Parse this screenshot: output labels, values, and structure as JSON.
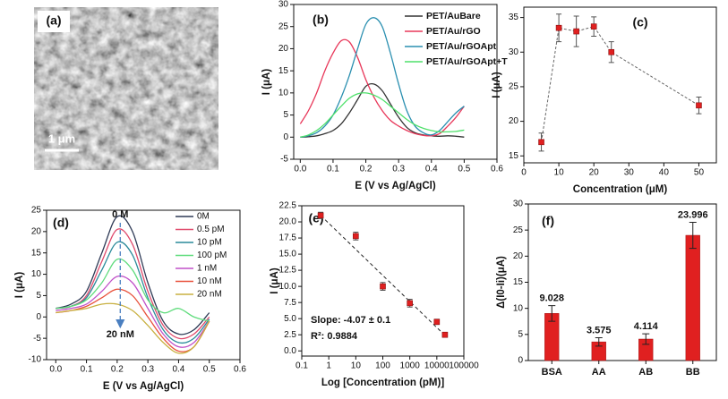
{
  "chart_data": [
    {
      "type": "image",
      "label": "(a)",
      "scale_bar": "1 μm"
    },
    {
      "type": "line",
      "label": "(b)",
      "xlabel": "E (V vs Ag/AgCl)",
      "ylabel": "I (μA)",
      "x": [
        0,
        0.025,
        0.05,
        0.075,
        0.1,
        0.125,
        0.15,
        0.175,
        0.2,
        0.225,
        0.25,
        0.275,
        0.3,
        0.325,
        0.35,
        0.375,
        0.4,
        0.425,
        0.45,
        0.475,
        0.5
      ],
      "xlim": [
        -0.02,
        0.6
      ],
      "xticks": [
        {
          "value": 0,
          "label": "0.0"
        },
        0.1,
        0.2,
        0.3,
        0.4,
        0.5,
        0.6
      ],
      "ylim": [
        -5,
        30
      ],
      "yticks": [
        -5,
        0,
        5,
        10,
        15,
        20,
        25,
        30
      ],
      "legend": "upper right",
      "series": [
        {
          "name": "PET/AuBare",
          "color": "#333333",
          "values": [
            0,
            0.1,
            0.3,
            0.8,
            1.5,
            3,
            5.5,
            8.5,
            11.5,
            12,
            10.5,
            7.5,
            4.5,
            2.2,
            1,
            0.5,
            0.3,
            0.2,
            0.3,
            0.2,
            0
          ]
        },
        {
          "name": "PET/Au/rGO",
          "color": "#e8385a",
          "values": [
            3,
            6,
            10,
            15,
            19,
            21.8,
            21.5,
            18,
            13,
            9,
            6,
            3.8,
            2.5,
            1.5,
            0.8,
            0.4,
            0.3,
            0.8,
            2.5,
            4.5,
            7
          ]
        },
        {
          "name": "PET/Au/rGOApt",
          "color": "#2a8fb0",
          "values": [
            0,
            0.3,
            1,
            2.5,
            5,
            9,
            14,
            20,
            25.5,
            27,
            25,
            19,
            12,
            6,
            2.5,
            1,
            0.5,
            1.5,
            3.5,
            5.5,
            7
          ]
        },
        {
          "name": "PET/Au/rGOApt+T",
          "color": "#4ee06a",
          "values": [
            0,
            0.5,
            1.5,
            3,
            5,
            7,
            8.8,
            9.8,
            10,
            9.5,
            8.5,
            7,
            5.5,
            4,
            2.8,
            2,
            1.5,
            1.2,
            1.2,
            1.3,
            1.6
          ]
        }
      ]
    },
    {
      "type": "scatter",
      "label": "(c)",
      "xlabel": "Concentration (μM)",
      "ylabel": "I (μA)",
      "x": [
        5,
        10,
        15,
        20,
        25,
        50
      ],
      "values": [
        17,
        33.5,
        33,
        33.7,
        30,
        22.3
      ],
      "errors": [
        1.3,
        2,
        2.2,
        1.4,
        1.5,
        1.2
      ],
      "color": "#e02020",
      "connect": "dashed",
      "xlim": [
        0,
        55
      ],
      "xticks": [
        0,
        10,
        20,
        30,
        40,
        50
      ],
      "ylim": [
        14,
        36.5
      ],
      "yticks": [
        15,
        20,
        25,
        30,
        35
      ]
    },
    {
      "type": "line",
      "label": "(d)",
      "xlabel": "E (V vs Ag/AgCl)",
      "ylabel": "I (μA)",
      "x": [
        0,
        0.05,
        0.1,
        0.15,
        0.2,
        0.25,
        0.3,
        0.35,
        0.4,
        0.45,
        0.5
      ],
      "xlim": [
        -0.03,
        0.6
      ],
      "xticks": [
        {
          "value": 0,
          "label": "0.0"
        },
        0.1,
        0.2,
        0.3,
        0.4,
        0.5,
        0.6
      ],
      "ylim": [
        -10,
        25
      ],
      "yticks": [
        -10,
        -5,
        0,
        5,
        10,
        15,
        20,
        25
      ],
      "legend": "upper right",
      "annotations": [
        "0 M",
        "20 nM"
      ],
      "series": [
        {
          "name": "0M",
          "color": "#2e3a56",
          "values": [
            2,
            3,
            6,
            15,
            23.5,
            20,
            8,
            -1,
            -4,
            -3,
            1
          ]
        },
        {
          "name": "0.5 pM",
          "color": "#e04a6c",
          "values": [
            2,
            2.5,
            5,
            13,
            20.5,
            17,
            6,
            -2,
            -5,
            -4,
            0
          ]
        },
        {
          "name": "10 pM",
          "color": "#2a8a9a",
          "values": [
            2,
            2.5,
            4.5,
            11,
            17.5,
            14.5,
            4.5,
            -3,
            -6,
            -5,
            -0.5
          ]
        },
        {
          "name": "100 pM",
          "color": "#5fdc7c",
          "values": [
            2,
            2.5,
            4,
            8,
            13.5,
            11,
            4,
            1,
            2,
            0,
            -1
          ]
        },
        {
          "name": "1 nM",
          "color": "#c050c8",
          "values": [
            1.5,
            2,
            3,
            6,
            9.5,
            8,
            2,
            -4,
            -7,
            -6,
            -1
          ]
        },
        {
          "name": "10 nM",
          "color": "#e8503a",
          "values": [
            1,
            1.5,
            2.5,
            4.5,
            6.5,
            5,
            0,
            -5,
            -8,
            -7,
            -1
          ]
        },
        {
          "name": "20 nM",
          "color": "#c8b040",
          "values": [
            1,
            1.5,
            2,
            3,
            3,
            1.5,
            -2,
            -6,
            -8.5,
            -7,
            -1
          ]
        }
      ]
    },
    {
      "type": "scatter",
      "label": "(e)",
      "xlabel": "Log [Concentration (pM)]",
      "ylabel": "I (μA)",
      "x": [
        0.5,
        10,
        100,
        1000,
        10000,
        20000
      ],
      "values": [
        21,
        17.8,
        10,
        7.4,
        4.5,
        2.5
      ],
      "errors": [
        0.5,
        0.6,
        0.6,
        0.6,
        0.4,
        0.2
      ],
      "color": "#e02020",
      "xscale": "log",
      "fit_line": {
        "x": [
          0.5,
          20000
        ],
        "y": [
          21,
          2.4
        ]
      },
      "annotations": [
        "Slope: -4.07 ± 0.1",
        "R²: 0.9884"
      ],
      "xlim": [
        0.1,
        100000
      ],
      "xticks": [
        0.1,
        1,
        10,
        100,
        1000,
        10000,
        100000
      ],
      "ylim": [
        -0.8,
        22.5
      ],
      "yticks": [
        {
          "value": 0,
          "label": "0.0"
        },
        2.5,
        {
          "value": 5,
          "label": "5.0"
        },
        7.5,
        {
          "value": 10,
          "label": "10.0"
        },
        12.5,
        {
          "value": 15,
          "label": "15.0"
        },
        17.5,
        {
          "value": 20,
          "label": "20.0"
        },
        22.5
      ]
    },
    {
      "type": "bar",
      "label": "(f)",
      "ylabel": "Δ(I0-Ii)(μA)",
      "categories": [
        "BSA",
        "AA",
        "AB",
        "BB"
      ],
      "values": [
        9.028,
        3.575,
        4.114,
        23.996
      ],
      "errors": [
        1.5,
        0.8,
        1,
        2.5
      ],
      "color": "#e02020",
      "ylim": [
        0,
        30
      ],
      "yticks": [
        0,
        5,
        10,
        15,
        20,
        25,
        30
      ]
    }
  ]
}
